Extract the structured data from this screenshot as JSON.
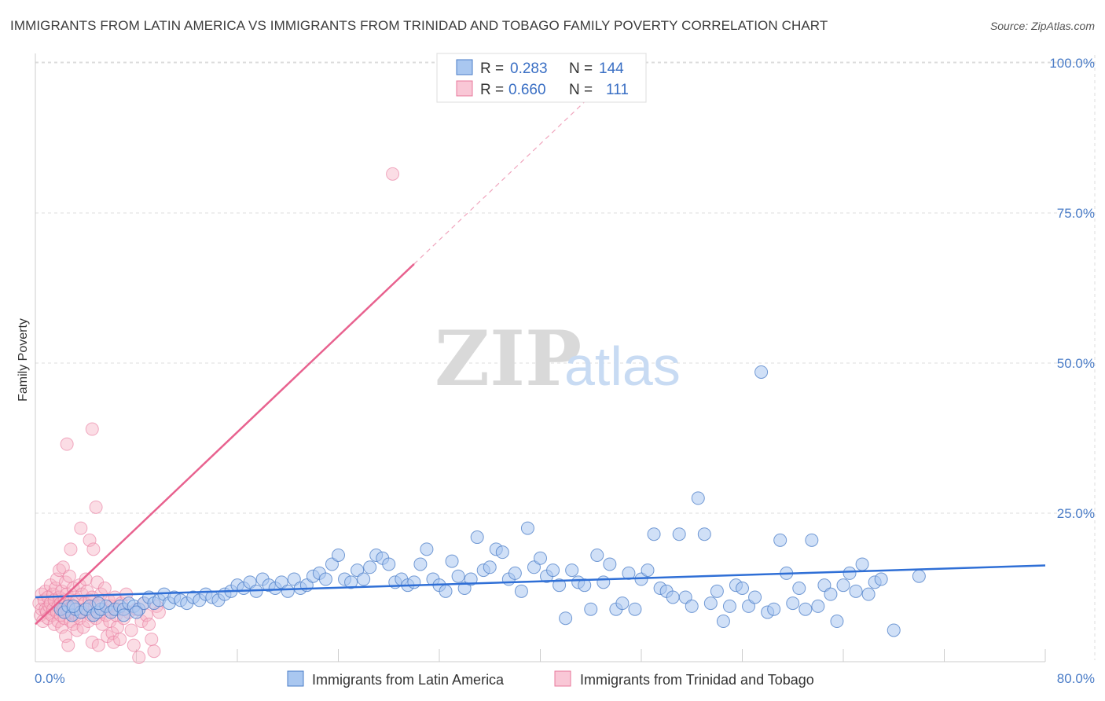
{
  "title": "IMMIGRANTS FROM LATIN AMERICA VS IMMIGRANTS FROM TRINIDAD AND TOBAGO FAMILY POVERTY CORRELATION CHART",
  "source": "Source: ZipAtlas.com",
  "watermark": {
    "zip": "ZIP",
    "atlas": "atlas"
  },
  "colors": {
    "blue": "#4a7cc7",
    "blue_fill": "#a9c7f0",
    "blue_line": "#2f6fd6",
    "pink_fill": "#f6b3c6",
    "pink_line": "#e8628f",
    "grid": "#dddddd"
  },
  "legend": [
    {
      "r_label": "R =",
      "r_value": "0.283",
      "n_label": "N =",
      "n_value": "144"
    },
    {
      "r_label": "R =",
      "r_value": "0.660",
      "n_label": "N =",
      "n_value": "111"
    }
  ],
  "bottom_legend": [
    "Immigrants from Latin America",
    "Immigrants from Trinidad and Tobago"
  ],
  "chart_data": {
    "type": "scatter",
    "ylabel": "Family Poverty",
    "xlim": [
      0,
      80
    ],
    "ylim": [
      0,
      105
    ],
    "x_tick_labels": [
      "0.0%",
      "80.0%"
    ],
    "y_ticks": [
      25,
      50,
      75,
      100
    ],
    "y_tick_labels": [
      "25.0%",
      "50.0%",
      "75.0%",
      "100.0%"
    ],
    "grid": true,
    "legend_position": "top-center",
    "series": [
      {
        "name": "Immigrants from Latin America",
        "trend": {
          "x": [
            0,
            80
          ],
          "y": [
            11.0,
            16.3
          ]
        },
        "points": [
          [
            2.0,
            9.0
          ],
          [
            2.3,
            8.5
          ],
          [
            2.6,
            9.5
          ],
          [
            2.9,
            8.0
          ],
          [
            3.2,
            9.0
          ],
          [
            3.6,
            8.5
          ],
          [
            4.0,
            9.0
          ],
          [
            4.3,
            9.5
          ],
          [
            4.6,
            8.0
          ],
          [
            4.9,
            8.5
          ],
          [
            5.2,
            9.0
          ],
          [
            5.6,
            9.5
          ],
          [
            6.0,
            8.5
          ],
          [
            6.3,
            9.0
          ],
          [
            6.7,
            9.5
          ],
          [
            7.0,
            9.0
          ],
          [
            7.4,
            10.0
          ],
          [
            7.8,
            9.5
          ],
          [
            8.2,
            9.0
          ],
          [
            8.6,
            10.0
          ],
          [
            9.0,
            11.0
          ],
          [
            9.4,
            10.0
          ],
          [
            9.8,
            10.5
          ],
          [
            10.2,
            11.5
          ],
          [
            10.6,
            10.0
          ],
          [
            11.0,
            11.0
          ],
          [
            11.5,
            10.5
          ],
          [
            12.0,
            10.0
          ],
          [
            12.5,
            11.0
          ],
          [
            13.0,
            10.5
          ],
          [
            13.5,
            11.5
          ],
          [
            14.0,
            11.0
          ],
          [
            14.5,
            10.5
          ],
          [
            15.0,
            11.5
          ],
          [
            15.5,
            12.0
          ],
          [
            16.0,
            13.0
          ],
          [
            16.5,
            12.5
          ],
          [
            17.0,
            13.5
          ],
          [
            17.5,
            12.0
          ],
          [
            18.0,
            14.0
          ],
          [
            18.5,
            13.0
          ],
          [
            19.0,
            12.5
          ],
          [
            19.5,
            13.5
          ],
          [
            20.0,
            12.0
          ],
          [
            20.5,
            14.0
          ],
          [
            21.0,
            12.5
          ],
          [
            21.5,
            13.0
          ],
          [
            22.0,
            14.5
          ],
          [
            22.5,
            15.0
          ],
          [
            23.0,
            14.0
          ],
          [
            23.5,
            16.5
          ],
          [
            24.0,
            18.0
          ],
          [
            24.5,
            14.0
          ],
          [
            25.0,
            13.5
          ],
          [
            25.5,
            15.5
          ],
          [
            26.0,
            14.0
          ],
          [
            26.5,
            16.0
          ],
          [
            27.0,
            18.0
          ],
          [
            27.5,
            17.5
          ],
          [
            28.0,
            16.5
          ],
          [
            28.5,
            13.5
          ],
          [
            29.0,
            14.0
          ],
          [
            29.5,
            13.0
          ],
          [
            30.0,
            13.5
          ],
          [
            30.5,
            16.5
          ],
          [
            31.0,
            19.0
          ],
          [
            31.5,
            14.0
          ],
          [
            32.0,
            13.0
          ],
          [
            32.5,
            12.0
          ],
          [
            33.0,
            17.0
          ],
          [
            33.5,
            14.5
          ],
          [
            34.0,
            12.5
          ],
          [
            34.5,
            14.0
          ],
          [
            35.0,
            21.0
          ],
          [
            35.5,
            15.5
          ],
          [
            36.0,
            16.0
          ],
          [
            36.5,
            19.0
          ],
          [
            37.0,
            18.5
          ],
          [
            37.5,
            14.0
          ],
          [
            38.0,
            15.0
          ],
          [
            38.5,
            12.0
          ],
          [
            39.0,
            22.5
          ],
          [
            39.5,
            16.0
          ],
          [
            40.0,
            17.5
          ],
          [
            40.5,
            14.5
          ],
          [
            41.0,
            15.5
          ],
          [
            41.5,
            13.0
          ],
          [
            42.0,
            7.5
          ],
          [
            42.5,
            15.5
          ],
          [
            43.0,
            13.5
          ],
          [
            43.5,
            13.0
          ],
          [
            44.0,
            9.0
          ],
          [
            44.5,
            18.0
          ],
          [
            45.0,
            13.5
          ],
          [
            45.5,
            16.5
          ],
          [
            46.0,
            9.0
          ],
          [
            46.5,
            10.0
          ],
          [
            47.0,
            15.0
          ],
          [
            47.5,
            9.0
          ],
          [
            48.0,
            14.0
          ],
          [
            48.5,
            15.5
          ],
          [
            49.0,
            21.5
          ],
          [
            49.5,
            12.5
          ],
          [
            50.0,
            12.0
          ],
          [
            50.5,
            11.0
          ],
          [
            51.0,
            21.5
          ],
          [
            51.5,
            11.0
          ],
          [
            52.0,
            9.5
          ],
          [
            52.5,
            27.5
          ],
          [
            53.0,
            21.5
          ],
          [
            53.5,
            10.0
          ],
          [
            54.0,
            12.0
          ],
          [
            54.5,
            7.0
          ],
          [
            55.0,
            9.5
          ],
          [
            55.5,
            13.0
          ],
          [
            56.0,
            12.5
          ],
          [
            56.5,
            9.5
          ],
          [
            57.0,
            11.0
          ],
          [
            57.5,
            48.5
          ],
          [
            58.0,
            8.5
          ],
          [
            58.5,
            9.0
          ],
          [
            59.0,
            20.5
          ],
          [
            59.5,
            15.0
          ],
          [
            60.0,
            10.0
          ],
          [
            60.5,
            12.5
          ],
          [
            61.0,
            9.0
          ],
          [
            61.5,
            20.5
          ],
          [
            62.0,
            9.5
          ],
          [
            62.5,
            13.0
          ],
          [
            63.0,
            11.5
          ],
          [
            63.5,
            7.0
          ],
          [
            64.0,
            13.0
          ],
          [
            64.5,
            15.0
          ],
          [
            65.0,
            12.0
          ],
          [
            65.5,
            16.5
          ],
          [
            66.0,
            11.5
          ],
          [
            66.5,
            13.5
          ],
          [
            67.0,
            14.0
          ],
          [
            68.0,
            5.5
          ],
          [
            70.0,
            14.5
          ],
          [
            3.0,
            9.5
          ],
          [
            5.0,
            10.0
          ],
          [
            7.0,
            8.0
          ],
          [
            8.0,
            8.5
          ]
        ]
      },
      {
        "name": "Immigrants from Trinidad and Tobago",
        "trend": {
          "x": [
            0,
            30
          ],
          "y": [
            6.5,
            66.5
          ],
          "dashed_extension_to": [
            45,
            96.5
          ]
        },
        "points": [
          [
            0.3,
            10.0
          ],
          [
            0.4,
            8.0
          ],
          [
            0.5,
            11.5
          ],
          [
            0.5,
            9.0
          ],
          [
            0.6,
            7.0
          ],
          [
            0.7,
            10.5
          ],
          [
            0.8,
            9.0
          ],
          [
            0.8,
            12.0
          ],
          [
            0.9,
            8.5
          ],
          [
            1.0,
            11.0
          ],
          [
            1.0,
            7.5
          ],
          [
            1.1,
            9.5
          ],
          [
            1.2,
            10.0
          ],
          [
            1.2,
            13.0
          ],
          [
            1.3,
            8.0
          ],
          [
            1.4,
            11.5
          ],
          [
            1.4,
            9.0
          ],
          [
            1.5,
            6.5
          ],
          [
            1.5,
            10.5
          ],
          [
            1.6,
            12.5
          ],
          [
            1.7,
            8.5
          ],
          [
            1.7,
            14.0
          ],
          [
            1.8,
            9.5
          ],
          [
            1.8,
            7.0
          ],
          [
            1.9,
            11.0
          ],
          [
            1.9,
            15.5
          ],
          [
            2.0,
            10.0
          ],
          [
            2.0,
            8.0
          ],
          [
            2.1,
            12.0
          ],
          [
            2.1,
            6.0
          ],
          [
            2.2,
            9.0
          ],
          [
            2.2,
            16.0
          ],
          [
            2.3,
            10.5
          ],
          [
            2.3,
            7.5
          ],
          [
            2.4,
            13.5
          ],
          [
            2.4,
            4.5
          ],
          [
            2.5,
            11.5
          ],
          [
            2.5,
            9.0
          ],
          [
            2.6,
            8.5
          ],
          [
            2.6,
            3.0
          ],
          [
            2.7,
            14.5
          ],
          [
            2.7,
            10.0
          ],
          [
            2.8,
            7.0
          ],
          [
            2.8,
            19.0
          ],
          [
            2.9,
            9.5
          ],
          [
            3.0,
            12.5
          ],
          [
            3.0,
            6.5
          ],
          [
            3.1,
            11.0
          ],
          [
            3.2,
            8.0
          ],
          [
            3.3,
            10.5
          ],
          [
            3.3,
            5.5
          ],
          [
            3.4,
            9.0
          ],
          [
            3.5,
            13.0
          ],
          [
            3.5,
            7.5
          ],
          [
            3.6,
            22.5
          ],
          [
            3.7,
            11.5
          ],
          [
            3.8,
            8.5
          ],
          [
            3.8,
            6.0
          ],
          [
            3.9,
            10.0
          ],
          [
            4.0,
            14.0
          ],
          [
            4.0,
            9.0
          ],
          [
            4.1,
            12.0
          ],
          [
            4.2,
            7.0
          ],
          [
            4.3,
            20.5
          ],
          [
            4.3,
            10.5
          ],
          [
            4.4,
            8.0
          ],
          [
            4.5,
            3.5
          ],
          [
            4.5,
            11.0
          ],
          [
            4.6,
            19.0
          ],
          [
            4.7,
            9.5
          ],
          [
            4.8,
            26.0
          ],
          [
            4.8,
            7.5
          ],
          [
            4.9,
            13.5
          ],
          [
            5.0,
            10.0
          ],
          [
            5.0,
            3.0
          ],
          [
            5.1,
            8.5
          ],
          [
            5.2,
            11.5
          ],
          [
            5.3,
            6.5
          ],
          [
            5.4,
            9.0
          ],
          [
            5.5,
            12.5
          ],
          [
            5.6,
            8.0
          ],
          [
            5.7,
            4.5
          ],
          [
            5.8,
            10.5
          ],
          [
            5.9,
            7.0
          ],
          [
            6.0,
            9.5
          ],
          [
            6.1,
            5.0
          ],
          [
            6.2,
            3.5
          ],
          [
            6.3,
            11.0
          ],
          [
            6.4,
            8.0
          ],
          [
            6.5,
            6.0
          ],
          [
            6.6,
            9.0
          ],
          [
            6.7,
            4.0
          ],
          [
            6.8,
            10.0
          ],
          [
            7.0,
            7.5
          ],
          [
            7.2,
            11.5
          ],
          [
            7.4,
            8.5
          ],
          [
            7.6,
            5.5
          ],
          [
            7.8,
            3.0
          ],
          [
            8.0,
            9.0
          ],
          [
            8.2,
            1.0
          ],
          [
            8.4,
            7.0
          ],
          [
            8.6,
            10.0
          ],
          [
            8.8,
            8.0
          ],
          [
            9.0,
            6.5
          ],
          [
            9.2,
            4.0
          ],
          [
            9.4,
            2.0
          ],
          [
            9.6,
            9.5
          ],
          [
            9.8,
            8.5
          ],
          [
            2.5,
            36.5
          ],
          [
            4.5,
            39.0
          ],
          [
            28.3,
            81.5
          ]
        ]
      }
    ]
  }
}
